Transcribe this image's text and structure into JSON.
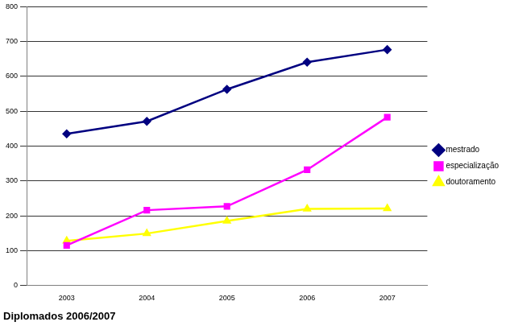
{
  "chart_data": {
    "type": "line",
    "title": "Diplomados 2006/2007",
    "categories": [
      "2003",
      "2004",
      "2005",
      "2006",
      "2007"
    ],
    "series": [
      {
        "name": "mestrado",
        "color": "#000080",
        "marker": "diamond",
        "values": [
          435,
          471,
          563,
          641,
          677
        ]
      },
      {
        "name": "especialização",
        "color": "#ff00ff",
        "marker": "square",
        "values": [
          115,
          216,
          227,
          332,
          483
        ]
      },
      {
        "name": "doutoramento",
        "color": "#ffff00",
        "marker": "triangle",
        "values": [
          128,
          149,
          185,
          220,
          221
        ]
      }
    ],
    "ylim": [
      0,
      800
    ],
    "yticks": [
      0,
      100,
      200,
      300,
      400,
      500,
      600,
      700,
      800
    ],
    "grid": true,
    "legend": "right"
  }
}
